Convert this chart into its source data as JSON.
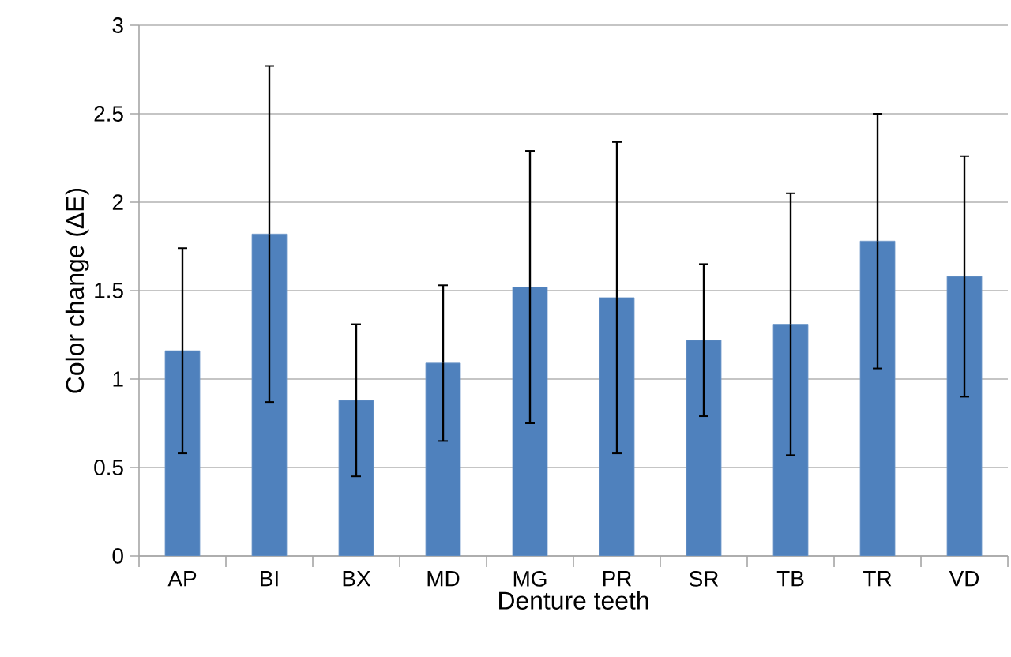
{
  "chart_data": {
    "type": "bar",
    "xlabel": "Denture teeth",
    "ylabel": "Color change (ΔE)",
    "categories": [
      "AP",
      "BI",
      "BX",
      "MD",
      "MG",
      "PR",
      "SR",
      "TB",
      "TR",
      "VD"
    ],
    "values": [
      1.16,
      1.82,
      0.88,
      1.09,
      1.52,
      1.46,
      1.22,
      1.31,
      1.78,
      1.58
    ],
    "errors": [
      0.58,
      0.95,
      0.43,
      0.44,
      0.77,
      0.88,
      0.43,
      0.74,
      0.72,
      0.68
    ],
    "color": "#4f81bd",
    "ylim": [
      0,
      3
    ],
    "yticks": [
      0,
      0.5,
      1,
      1.5,
      2,
      2.5,
      3
    ],
    "grid": "y"
  }
}
